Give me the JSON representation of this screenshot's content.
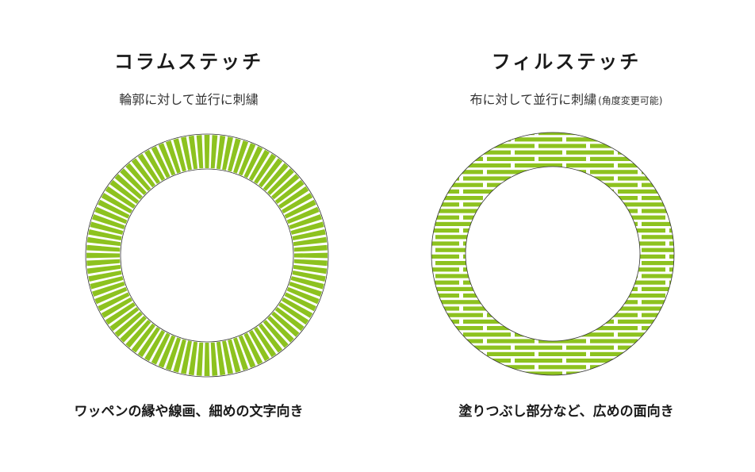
{
  "colors": {
    "stitch_green": "#8dc21f",
    "outline": "#333333",
    "background": "#ffffff"
  },
  "column_stitch": {
    "title": "コラムステッチ",
    "subtitle": "輪郭に対して並行に刺繍",
    "caption": "ワッペンの縁や線画、細めの文字向き"
  },
  "fill_stitch": {
    "title": "フィルステッチ",
    "subtitle": "布に対して並行に刺繍",
    "subtitle_note": "(角度変更可能)",
    "caption": "塗りつぶし部分など、広めの面向き"
  }
}
